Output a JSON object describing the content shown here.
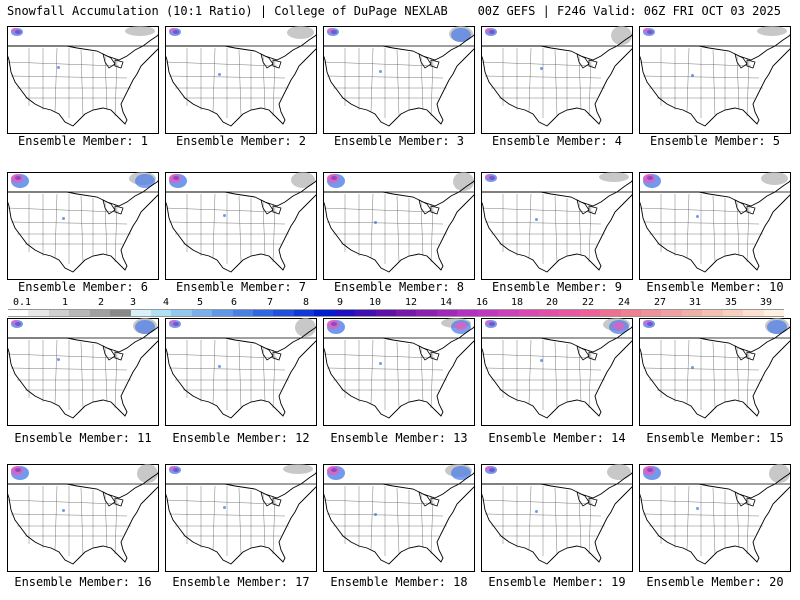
{
  "header": {
    "left": "Snowfall Accumulation (10:1 Ratio) | College of DuPage NEXLAB",
    "right": "00Z GEFS | F246 Valid: 06Z FRI OCT 03 2025"
  },
  "member_prefix": "Ensemble Member: ",
  "members": [
    1,
    2,
    3,
    4,
    5,
    6,
    7,
    8,
    9,
    10,
    11,
    12,
    13,
    14,
    15,
    16,
    17,
    18,
    19,
    20
  ],
  "legend": {
    "labels": [
      "0.1",
      "1",
      "2",
      "3",
      "4",
      "5",
      "6",
      "7",
      "8",
      "9",
      "10",
      "12",
      "14",
      "16",
      "18",
      "20",
      "22",
      "24",
      "27",
      "31",
      "35",
      "39"
    ],
    "colors": [
      "#ffffff",
      "#e8e8e8",
      "#d0d0d0",
      "#b8b8b8",
      "#a0a0a0",
      "#888888",
      "#d8f0f8",
      "#b0e0f4",
      "#90c8f0",
      "#78b0ec",
      "#6098e8",
      "#4880e4",
      "#3068e0",
      "#2050dc",
      "#1038d8",
      "#0020d0",
      "#2010c0",
      "#4010b0",
      "#6010a8",
      "#7818a8",
      "#8c20b0",
      "#a028b8",
      "#b430c0",
      "#c038c0",
      "#cc40b8",
      "#d848b0",
      "#e050a8",
      "#e858a0",
      "#f06098",
      "#f07090",
      "#f08090",
      "#f09098",
      "#f0a0a0",
      "#f0b0a8",
      "#f4c0b0",
      "#f8d0c0",
      "#fce0d0",
      "#fff0e4"
    ]
  },
  "colors": {
    "snow_pink": "#e060c0",
    "snow_purple": "#8040c0",
    "snow_blue": "#5080e8",
    "snow_gray": "#b0b0b0"
  }
}
